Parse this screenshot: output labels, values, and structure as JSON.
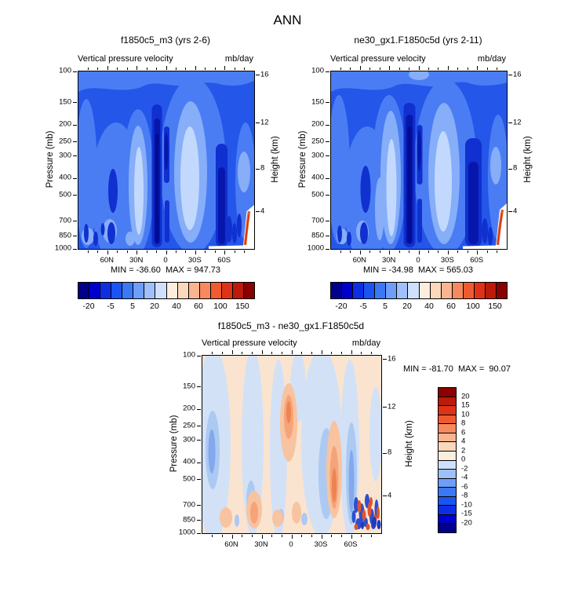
{
  "figure_title": "ANN",
  "colorbars": {
    "top": {
      "labels": [
        "-20",
        "-5",
        "5",
        "20",
        "40",
        "60",
        "100",
        "150"
      ],
      "colors": [
        "#00008B",
        "#0000CD",
        "#0D2FE3",
        "#1B54F0",
        "#3B78F5",
        "#6E9EF8",
        "#9FC0FB",
        "#CFE0FD",
        "#FCEEDF",
        "#FBD8BC",
        "#F9B590",
        "#F68A5E",
        "#EF5B31",
        "#DF3317",
        "#BC1A0A",
        "#8B0000"
      ]
    },
    "diff": {
      "labels": [
        "20",
        "15",
        "10",
        "8",
        "6",
        "4",
        "2",
        "0",
        "-2",
        "-4",
        "-6",
        "-8",
        "-10",
        "-15",
        "-20"
      ],
      "colors": [
        "#8B0000",
        "#BC1A0A",
        "#DF3317",
        "#EF5B31",
        "#F68A5E",
        "#F9B590",
        "#FBD8BC",
        "#FCEEDF",
        "#CFE0FD",
        "#9FC0FB",
        "#6E9EF8",
        "#3B78F5",
        "#1B54F0",
        "#0D2FE3",
        "#0000CD",
        "#00008B"
      ]
    }
  },
  "chart_data": [
    {
      "type": "heatmap",
      "subtype": "latitude-pressure filled contour",
      "panel": "top-left",
      "title": "f1850c5_m3 (yrs 2-6)",
      "field_label": "Vertical pressure velocity",
      "units": "mb/day",
      "ylabel": "Pressure (mb)",
      "ylabel_right": "Height (km)",
      "y_scale": "log",
      "ylim": [
        100,
        1000
      ],
      "pressure_ticks": [
        "100",
        "150",
        "200",
        "250",
        "300",
        "400",
        "500",
        "700",
        "850",
        "1000"
      ],
      "height_ticks": [
        "16",
        "12",
        "8",
        "4"
      ],
      "lat_ticks": [
        "60N",
        "30N",
        "0",
        "30S",
        "60S"
      ],
      "x_range": [
        "90N",
        "90S"
      ],
      "min": -36.6,
      "max": 947.73,
      "stats_text": "MIN = -36.60  MAX = 947.73",
      "contour_levels_labeled": [
        -20,
        -5,
        5,
        20,
        40,
        60,
        100,
        150
      ]
    },
    {
      "type": "heatmap",
      "subtype": "latitude-pressure filled contour",
      "panel": "top-right",
      "title": "ne30_gx1.F1850c5d (yrs 2-11)",
      "field_label": "Vertical pressure velocity",
      "units": "mb/day",
      "ylabel": "Pressure (mb)",
      "ylabel_right": "Height (km)",
      "y_scale": "log",
      "ylim": [
        100,
        1000
      ],
      "pressure_ticks": [
        "100",
        "150",
        "200",
        "250",
        "300",
        "400",
        "500",
        "700",
        "850",
        "1000"
      ],
      "height_ticks": [
        "16",
        "12",
        "8",
        "4"
      ],
      "lat_ticks": [
        "60N",
        "30N",
        "0",
        "30S",
        "60S"
      ],
      "x_range": [
        "90N",
        "90S"
      ],
      "min": -34.98,
      "max": 565.03,
      "stats_text": "MIN = -34.98  MAX = 565.03",
      "contour_levels_labeled": [
        -20,
        -5,
        5,
        20,
        40,
        60,
        100,
        150
      ]
    },
    {
      "type": "heatmap",
      "subtype": "latitude-pressure filled contour (difference)",
      "panel": "bottom-difference",
      "title": "f1850c5_m3 - ne30_gx1.F1850c5d",
      "field_label": "Vertical pressure velocity",
      "units": "mb/day",
      "ylabel": "Pressure (mb)",
      "ylabel_right": "Height (km)",
      "y_scale": "log",
      "ylim": [
        100,
        1000
      ],
      "pressure_ticks": [
        "100",
        "150",
        "200",
        "250",
        "300",
        "400",
        "500",
        "700",
        "850",
        "1000"
      ],
      "height_ticks": [
        "16",
        "12",
        "8",
        "4"
      ],
      "lat_ticks": [
        "60N",
        "30N",
        "0",
        "30S",
        "60S"
      ],
      "x_range": [
        "90N",
        "90S"
      ],
      "min": -81.7,
      "max": 90.07,
      "stats_text": "MIN = -81.70  MAX =  90.07",
      "contour_levels_labeled": [
        20,
        15,
        10,
        8,
        6,
        4,
        2,
        0,
        -2,
        -4,
        -6,
        -8,
        -10,
        -15,
        -20
      ]
    }
  ]
}
